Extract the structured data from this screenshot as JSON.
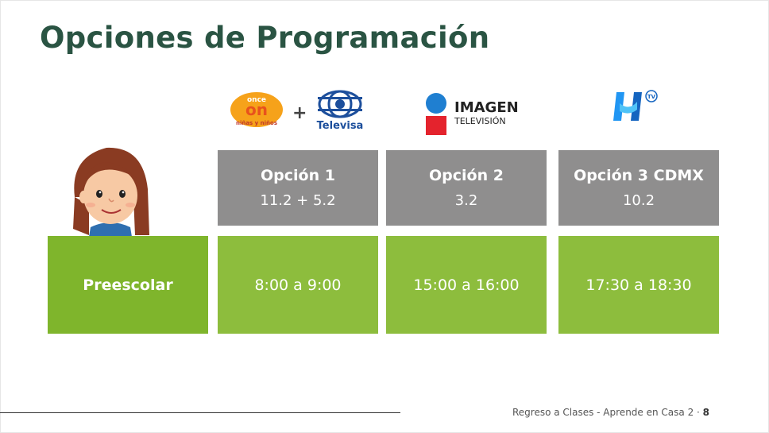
{
  "slide": {
    "title": "Opciones de Programación",
    "logos": {
      "once_text": "once",
      "ninos_text": "niñas y niños",
      "plus": "+",
      "televisa_text": "Televisa",
      "imagen_line1": "IMAGEN",
      "imagen_line2": "TELEVISIÓN",
      "h_tv_text": "TV"
    },
    "columns": [
      {
        "title": "Opción 1",
        "channel": "11.2  +  5.2"
      },
      {
        "title": "Opción 2",
        "channel": "3.2"
      },
      {
        "title": "Opción 3 CDMX",
        "channel": "10.2"
      }
    ],
    "row": {
      "label": "Preescolar",
      "times": [
        "8:00 a 9:00",
        "15:00 a 16:00",
        "17:30 a 18:30"
      ]
    },
    "footer": {
      "text": "Regreso a Clases - Aprende en Casa 2 · ",
      "page": "8"
    }
  }
}
